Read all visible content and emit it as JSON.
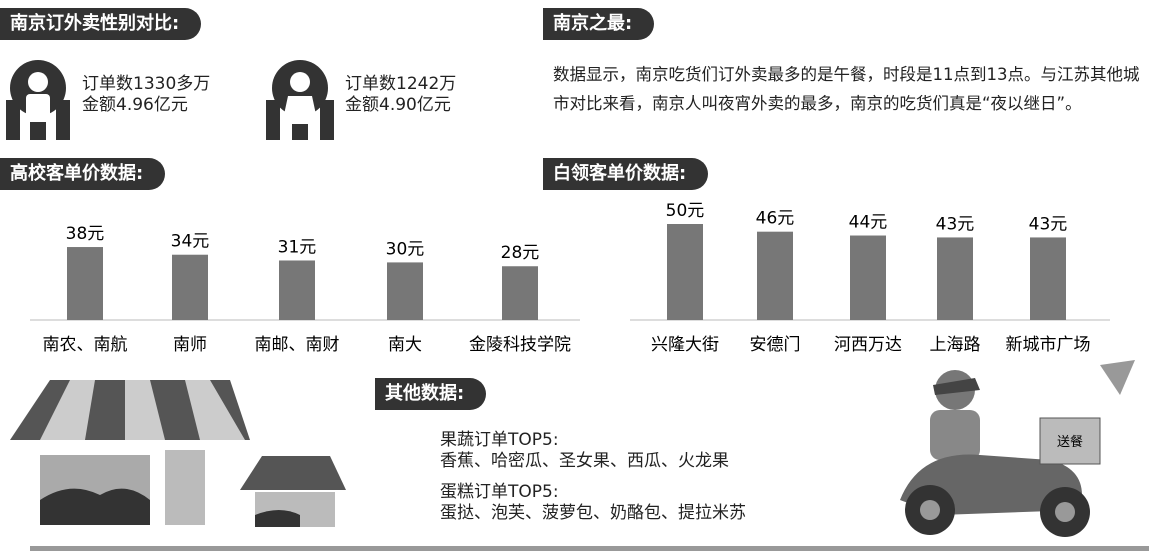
{
  "gender": {
    "title": "南京订外卖性别对比:",
    "male": {
      "orders": "订单数1330多万",
      "amount": "金额4.96亿元"
    },
    "female": {
      "orders": "订单数1242万",
      "amount": "金额4.90亿元"
    }
  },
  "most": {
    "title": "南京之最:",
    "text": "数据显示，南京吃货们订外卖最多的是午餐，时段是11点到13点。与江苏其他城市对比来看，南京人叫夜宵外卖的最多，南京的吃货们真是“夜以继日”。"
  },
  "chart_data": [
    {
      "type": "bar",
      "title": "高校客单价数据:",
      "categories": [
        "南农、南航",
        "南师",
        "南邮、南财",
        "南大",
        "金陵科技学院"
      ],
      "values": [
        38,
        34,
        31,
        30,
        28
      ],
      "value_labels": [
        "38元",
        "34元",
        "31元",
        "30元",
        "28元"
      ],
      "color": "#777777"
    },
    {
      "type": "bar",
      "title": "白领客单价数据:",
      "categories": [
        "兴隆大街",
        "安德门",
        "河西万达",
        "上海路",
        "新城市广场"
      ],
      "values": [
        50,
        46,
        44,
        43,
        43
      ],
      "value_labels": [
        "50元",
        "46元",
        "44元",
        "43元",
        "43元"
      ],
      "color": "#777777"
    }
  ],
  "other": {
    "title": "其他数据:",
    "fruit_title": "果蔬订单TOP5:",
    "fruit": "香蕉、哈密瓜、圣女果、西瓜、火龙果",
    "cake_title": "蛋糕订单TOP5:",
    "cake": "蛋挞、泡芙、菠萝包、奶酪包、提拉米苏",
    "box": "送餐"
  }
}
